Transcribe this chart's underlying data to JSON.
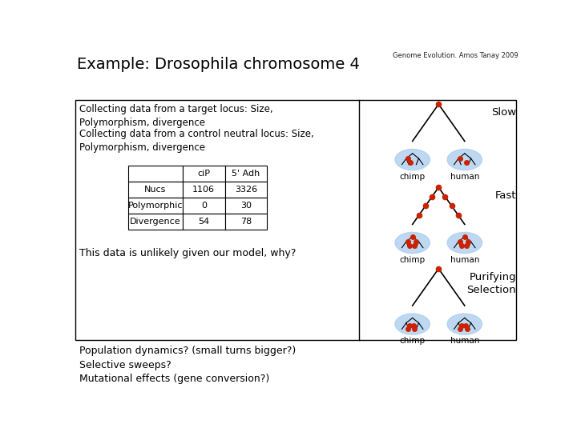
{
  "title": "Example: Drosophila chromosome 4",
  "subtitle": "Genome Evolution. Amos Tanay 2009",
  "bg_color": "#ffffff",
  "box_color": "#000000",
  "ellipse_color": "#aaccee",
  "dot_color": "#cc2200",
  "left_texts_top": [
    "Collecting data from a target locus: Size,\nPolymorphism, divergence",
    "Collecting data from a control neutral locus: Size,\nPolymorphism, divergence",
    "This data is unlikely given our model, why?"
  ],
  "bottom_texts": [
    "Population dynamics? (small turns bigger?)",
    "Selective sweeps?",
    "Mutational effects (gene conversion?)"
  ],
  "table_headers": [
    "",
    "ciP",
    "5' Adh"
  ],
  "table_rows": [
    [
      "Nucs",
      "1106",
      "3326"
    ],
    [
      "Polymorphic",
      "0",
      "30"
    ],
    [
      "Divergence",
      "54",
      "78"
    ]
  ],
  "panel_labels": [
    "Slow",
    "Fast",
    "Purifying\nSelection"
  ]
}
